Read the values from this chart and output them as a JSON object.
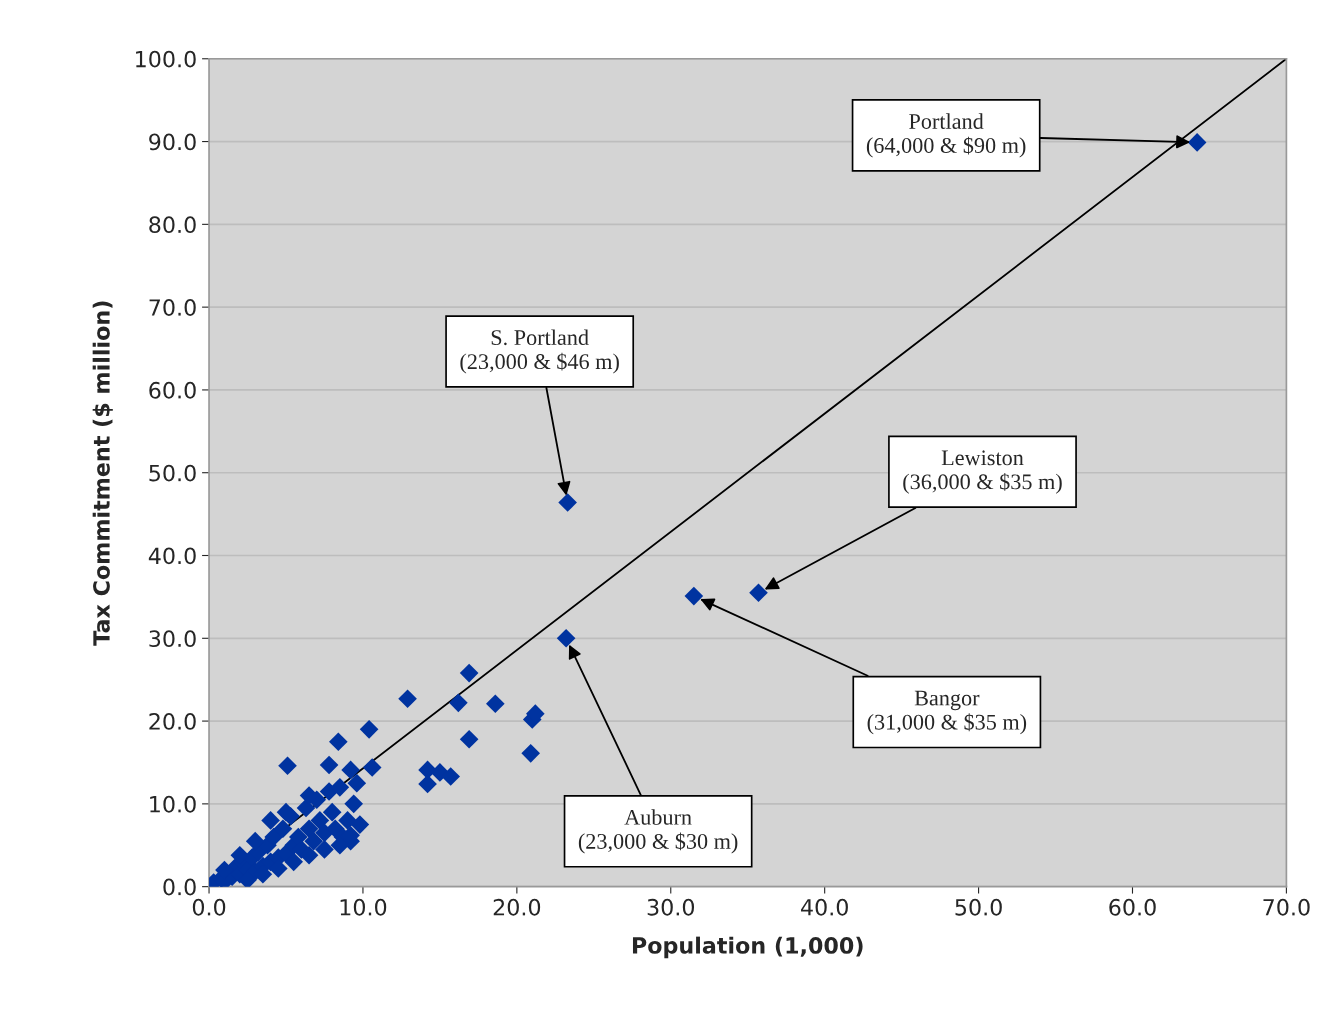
{
  "chart_data": {
    "type": "scatter",
    "xlabel": "Population (1,000)",
    "ylabel": "Tax Commitment ($ million)",
    "xlim": [
      0,
      70
    ],
    "ylim": [
      0,
      100
    ],
    "xticks": [
      {
        "value": 0,
        "label": "0.0"
      },
      {
        "value": 10,
        "label": "10.0"
      },
      {
        "value": 20,
        "label": "20.0"
      },
      {
        "value": 30,
        "label": "30.0"
      },
      {
        "value": 40,
        "label": "40.0"
      },
      {
        "value": 50,
        "label": "50.0"
      },
      {
        "value": 60,
        "label": "60.0"
      },
      {
        "value": 70,
        "label": "70.0"
      }
    ],
    "yticks": [
      {
        "value": 0,
        "label": "0.0"
      },
      {
        "value": 10,
        "label": "10.0"
      },
      {
        "value": 20,
        "label": "20.0"
      },
      {
        "value": 30,
        "label": "30.0"
      },
      {
        "value": 40,
        "label": "40.0"
      },
      {
        "value": 50,
        "label": "50.0"
      },
      {
        "value": 60,
        "label": "60.0"
      },
      {
        "value": 70,
        "label": "70.0"
      },
      {
        "value": 80,
        "label": "80.0"
      },
      {
        "value": 90,
        "label": "90.0"
      },
      {
        "value": 100,
        "label": "100.0"
      }
    ],
    "grid": "y",
    "legend": false,
    "marker": "diamond",
    "series": [
      {
        "color": "#0033a0",
        "x": [
          64.2,
          23.3,
          23.2,
          31.5,
          35.7,
          16.9,
          12.9,
          16.2,
          18.6,
          21.0,
          21.2,
          16.9,
          20.9,
          14.2,
          15.0,
          15.7,
          14.2,
          10.4,
          8.4,
          5.1,
          7.8,
          9.2,
          10.6,
          0.3,
          0.8,
          1.0,
          1.5,
          1.8,
          2.0,
          2.2,
          2.5,
          2.8,
          3.0,
          3.2,
          3.5,
          3.8,
          4.0,
          4.2,
          4.5,
          4.8,
          5.0,
          5.3,
          5.5,
          5.8,
          6.0,
          6.3,
          6.5,
          6.8,
          7.0,
          7.2,
          7.5,
          7.8,
          8.0,
          8.2,
          8.5,
          8.7,
          9.0,
          9.2,
          9.4,
          9.6,
          9.8,
          2.0,
          3.0,
          4.0,
          5.0,
          6.5,
          1.0,
          2.5,
          3.5,
          4.5,
          5.5,
          6.5,
          7.5,
          8.5,
          9.2
        ],
        "values": [
          89.9,
          46.4,
          30.0,
          35.1,
          35.5,
          25.8,
          22.7,
          22.2,
          22.1,
          20.2,
          20.9,
          17.8,
          16.1,
          14.1,
          13.8,
          13.3,
          12.4,
          19.0,
          17.5,
          14.6,
          14.7,
          14.1,
          14.4,
          0.5,
          1.0,
          0.6,
          1.2,
          2.5,
          1.5,
          3.0,
          2.0,
          3.5,
          1.8,
          4.2,
          2.5,
          5.0,
          3.0,
          6.0,
          3.5,
          7.0,
          4.0,
          8.5,
          5.0,
          6.0,
          4.5,
          9.5,
          7.0,
          5.5,
          10.5,
          8.0,
          6.5,
          11.5,
          9.0,
          7.0,
          12.0,
          6.0,
          8.0,
          5.5,
          10.0,
          12.5,
          7.5,
          3.8,
          5.5,
          8.0,
          9.0,
          11.0,
          2.0,
          0.8,
          1.5,
          2.2,
          3.0,
          3.8,
          4.5,
          5.0,
          6.2
        ]
      },
      {
        "type": "line",
        "marker": "none",
        "color": "#000000",
        "x": [
          0,
          70
        ],
        "values": [
          0,
          100
        ]
      }
    ],
    "annotations": [
      {
        "text": "Portland\n(64,000 & $90 m)",
        "x": 64.2,
        "y": 89.9
      },
      {
        "text": "S. Portland\n(23,000 & $46 m)",
        "x": 23.3,
        "y": 46.4
      },
      {
        "text": "Lewiston\n(36,000 & $35 m)",
        "x": 35.7,
        "y": 35.5
      },
      {
        "text": "Bangor\n(31,000 & $35 m)",
        "x": 31.5,
        "y": 35.1
      },
      {
        "text": "Auburn\n(23,000 & $30 m)",
        "x": 23.2,
        "y": 30.0
      }
    ]
  }
}
